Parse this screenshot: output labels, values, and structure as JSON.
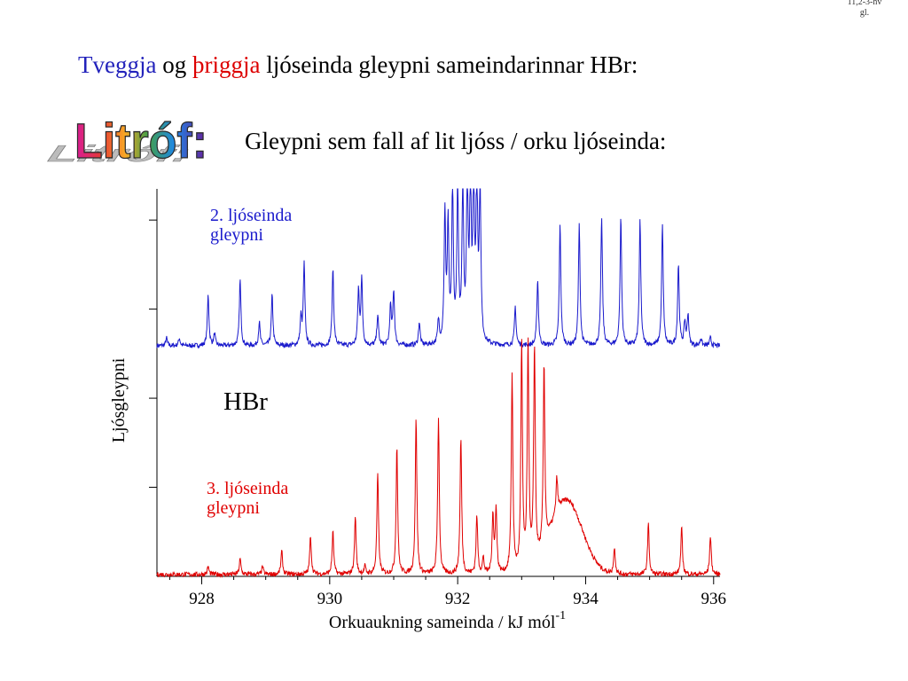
{
  "corner_note": [
    "11,2-3-hv",
    "gl."
  ],
  "title": {
    "part1": "Tveggja",
    "part2": " og ",
    "part3": "þriggja",
    "part4": " ljóseinda gleypni sameindarinnar HBr:"
  },
  "logo_text": "Litróf:",
  "subtitle": "Gleypni sem fall af lit ljóss / orku ljóseinda:",
  "colors": {
    "title_blue": "#2222bb",
    "title_red": "#dd0000",
    "series_blue": "#1a1acc",
    "series_red": "#e00000"
  },
  "chart_data": {
    "type": "line",
    "title": "",
    "xlabel": "Orkuaukning sameinda / kJ mól",
    "xlabel_superscript": "-1",
    "ylabel": "Ljósgleypni",
    "xlim": [
      927.3,
      936.1
    ],
    "ylim": [
      0,
      1
    ],
    "xticks": [
      928,
      930,
      932,
      934,
      936
    ],
    "xtick_labels": [
      "928",
      "930",
      "932",
      "934",
      "936"
    ],
    "y_tick_count": 4,
    "show_yticklabels": false,
    "grid": false,
    "annotation": "HBr",
    "series": [
      {
        "name": "2. ljóseinda gleypni",
        "label_lines": [
          "2. ljóseinda",
          "gleypni"
        ],
        "color": "#1a1acc",
        "baseline": 0.595,
        "peaks": [
          [
            927.45,
            0.02
          ],
          [
            927.65,
            0.02
          ],
          [
            928.1,
            0.13
          ],
          [
            928.2,
            0.03
          ],
          [
            928.6,
            0.17
          ],
          [
            928.9,
            0.06
          ],
          [
            929.1,
            0.13
          ],
          [
            929.55,
            0.07
          ],
          [
            929.6,
            0.21
          ],
          [
            930.05,
            0.2
          ],
          [
            930.45,
            0.14
          ],
          [
            930.5,
            0.17
          ],
          [
            930.75,
            0.08
          ],
          [
            930.95,
            0.1
          ],
          [
            931.0,
            0.14
          ],
          [
            931.4,
            0.06
          ],
          [
            931.7,
            0.06
          ],
          [
            931.8,
            0.33
          ],
          [
            931.85,
            0.3
          ],
          [
            931.92,
            0.4
          ],
          [
            932.0,
            0.41
          ],
          [
            932.08,
            0.41
          ],
          [
            932.15,
            0.41
          ],
          [
            932.2,
            0.41
          ],
          [
            932.25,
            0.41
          ],
          [
            932.3,
            0.41
          ],
          [
            932.35,
            0.41
          ],
          [
            932.9,
            0.1
          ],
          [
            933.25,
            0.17
          ],
          [
            933.6,
            0.31
          ],
          [
            933.9,
            0.31
          ],
          [
            934.25,
            0.33
          ],
          [
            934.55,
            0.33
          ],
          [
            934.85,
            0.32
          ],
          [
            935.2,
            0.31
          ],
          [
            935.45,
            0.21
          ],
          [
            935.55,
            0.06
          ],
          [
            935.6,
            0.08
          ],
          [
            935.8,
            0.02
          ],
          [
            935.95,
            0.02
          ]
        ]
      },
      {
        "name": "3. ljóseinda gleypni",
        "label_lines": [
          "3. ljóseinda",
          "gleypni"
        ],
        "color": "#e00000",
        "baseline": 0.005,
        "peaks": [
          [
            928.1,
            0.02
          ],
          [
            928.6,
            0.04
          ],
          [
            928.95,
            0.02
          ],
          [
            929.25,
            0.06
          ],
          [
            929.7,
            0.1
          ],
          [
            930.05,
            0.11
          ],
          [
            930.4,
            0.15
          ],
          [
            930.55,
            0.02
          ],
          [
            930.75,
            0.26
          ],
          [
            931.05,
            0.33
          ],
          [
            931.35,
            0.4
          ],
          [
            931.7,
            0.4
          ],
          [
            932.05,
            0.35
          ],
          [
            932.3,
            0.15
          ],
          [
            932.4,
            0.04
          ],
          [
            932.55,
            0.15
          ],
          [
            932.6,
            0.17
          ],
          [
            932.85,
            0.51
          ],
          [
            933.0,
            0.58
          ],
          [
            933.1,
            0.58
          ],
          [
            933.2,
            0.56
          ],
          [
            933.35,
            0.47
          ],
          [
            933.55,
            0.09
          ],
          [
            934.45,
            0.07
          ],
          [
            934.98,
            0.13
          ],
          [
            935.5,
            0.12
          ],
          [
            935.95,
            0.1
          ]
        ],
        "broad_band": {
          "center": 933.7,
          "height": 0.19,
          "width": 0.35
        }
      }
    ]
  }
}
